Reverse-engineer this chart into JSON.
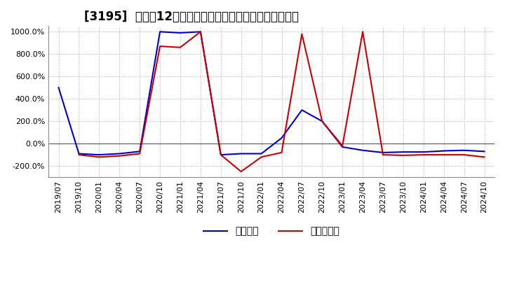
{
  "title": "[3195]  利益の12か月移動合計の対前年同期増減率の推移",
  "ylim": [
    -300,
    1050
  ],
  "yticks": [
    -200,
    0,
    200,
    400,
    600,
    800,
    1000
  ],
  "background_color": "#ffffff",
  "plot_bg_color": "#ffffff",
  "grid_color": "#aaaaaa",
  "legend_labels": [
    "経常利益",
    "当期純利益"
  ],
  "line_colors": [
    "#0000cc",
    "#cc0000"
  ],
  "x_labels": [
    "2019/07",
    "2019/10",
    "2020/01",
    "2020/04",
    "2020/07",
    "2020/10",
    "2021/01",
    "2021/04",
    "2021/07",
    "2021/10",
    "2022/01",
    "2022/04",
    "2022/07",
    "2022/10",
    "2023/01",
    "2023/04",
    "2023/07",
    "2023/10",
    "2024/01",
    "2024/04",
    "2024/07",
    "2024/10"
  ],
  "series1": [
    500,
    -90,
    -100,
    -90,
    -70,
    1000,
    990,
    1000,
    -100,
    -90,
    -90,
    50,
    300,
    200,
    -30,
    -60,
    -80,
    -75,
    -75,
    -65,
    -60,
    -70
  ],
  "series2": [
    null,
    -100,
    -120,
    -110,
    -90,
    870,
    860,
    1000,
    -100,
    -250,
    -120,
    -80,
    980,
    200,
    -20,
    1000,
    -100,
    -105,
    -100,
    -100,
    -100,
    -120
  ],
  "title_fontsize": 12,
  "tick_fontsize": 8,
  "legend_fontsize": 10,
  "linewidth": 1.5
}
